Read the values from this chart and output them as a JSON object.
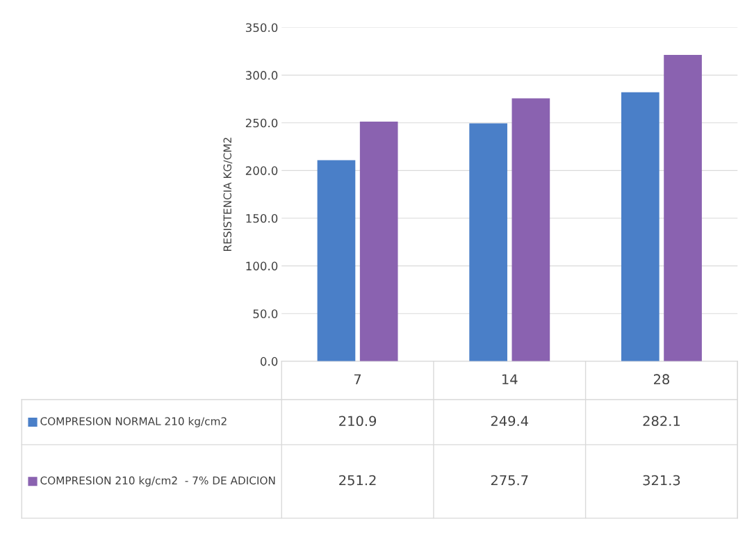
{
  "chart_data": {
    "type": "bar",
    "ylabel": "RESISTENCIA KG/CM2",
    "categories": [
      "7",
      "14",
      "28"
    ],
    "series": [
      {
        "name": "COMPRESION NORMAL 210 kg/cm2",
        "color": "#4a7fc8",
        "values": [
          210.9,
          249.4,
          282.1
        ]
      },
      {
        "name": "COMPRESION 210 kg/cm2  - 7% DE ADICION",
        "color": "#8a62b0",
        "values": [
          251.2,
          275.7,
          321.3
        ]
      }
    ],
    "ylim": [
      0,
      350
    ],
    "yticks": [
      {
        "value": 0,
        "label": "0.0"
      },
      {
        "value": 50,
        "label": "50.0"
      },
      {
        "value": 100,
        "label": "100.0"
      },
      {
        "value": 150,
        "label": "150.0"
      },
      {
        "value": 200,
        "label": "200.0"
      },
      {
        "value": 250,
        "label": "250.0"
      },
      {
        "value": 300,
        "label": "300.0"
      },
      {
        "value": 350,
        "label": "350.0"
      }
    ],
    "grid": "y",
    "legend": "bottom",
    "data_labels": true
  }
}
